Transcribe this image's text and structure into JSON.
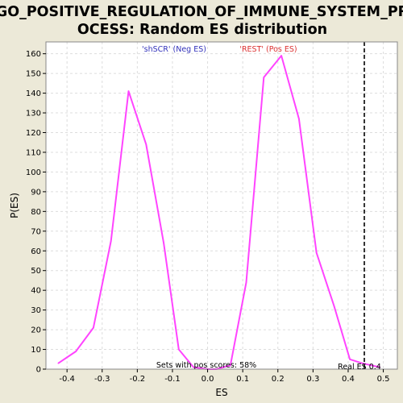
{
  "chart_data": {
    "type": "line",
    "title_line1": "GO_POSITIVE_REGULATION_OF_IMMUNE_SYSTEM_PR",
    "title_line2": "OCESS: Random ES distribution",
    "xlabel": "ES",
    "ylabel": "P(ES)",
    "xlim": [
      -0.46,
      0.54
    ],
    "ylim": [
      0,
      166
    ],
    "xticks": [
      -0.4,
      -0.3,
      -0.2,
      -0.1,
      0.0,
      0.1,
      0.2,
      0.3,
      0.4,
      0.5
    ],
    "xtick_labels": [
      "-0.4",
      "-0.3",
      "-0.2",
      "-0.1",
      "0.0",
      "0.1",
      "0.2",
      "0.3",
      "0.4",
      "0.5"
    ],
    "yticks": [
      0,
      10,
      20,
      30,
      40,
      50,
      60,
      70,
      80,
      90,
      100,
      110,
      120,
      130,
      140,
      150,
      160
    ],
    "ytick_labels": [
      "0",
      "10",
      "20",
      "30",
      "40",
      "50",
      "60",
      "70",
      "80",
      "90",
      "100",
      "110",
      "120",
      "130",
      "140",
      "150",
      "160"
    ],
    "grid": true,
    "series": [
      {
        "color": "#ff44ff",
        "x": [
          -0.425,
          -0.375,
          -0.325,
          -0.275,
          -0.225,
          -0.175,
          -0.125,
          -0.082,
          -0.04,
          0.0,
          0.025,
          0.065,
          0.11,
          0.16,
          0.21,
          0.26,
          0.31,
          0.36,
          0.405,
          0.44,
          0.49
        ],
        "y": [
          3,
          9,
          21,
          65,
          141,
          114,
          64,
          10,
          1,
          0,
          0,
          2,
          44,
          148,
          159,
          127,
          59,
          32,
          5,
          3,
          1
        ]
      }
    ],
    "real_es_line": {
      "x": 0.446,
      "color": "#333333",
      "style": "dashed"
    },
    "annotations": {
      "neg_label": "'shSCR' (Neg ES)",
      "neg_color": "#3333bb",
      "pos_label": "'REST' (Pos ES)",
      "pos_color": "#dd3333",
      "pos_scores": "Sets with pos scores: 58%",
      "real_es": "Real ES 0.4"
    }
  }
}
